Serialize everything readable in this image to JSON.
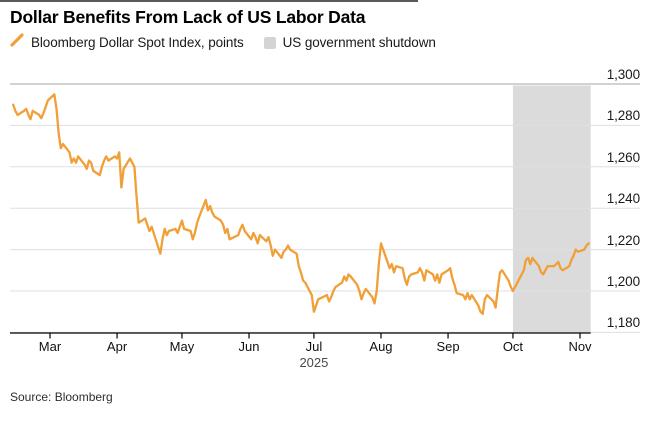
{
  "header": {
    "title": "Dollar Benefits From Lack of US Labor Data"
  },
  "legend": {
    "series_label": "Bloomberg Dollar Spot Index, points",
    "band_label": "US government shutdown"
  },
  "colors": {
    "series_orange": "#F19F37",
    "band_gray": "#DBDBDB",
    "legend_square_gray": "#D4D4D4",
    "gridline": "#DFDFDF",
    "top_gridline": "#A6A6A6",
    "axis": "#000000"
  },
  "footer": {
    "source": "Source: Bloomberg"
  },
  "chart_data": {
    "type": "line",
    "title": "Dollar Benefits From Lack of US Labor Data",
    "ylabel": "Bloomberg Dollar Spot Index, points",
    "ylim": [
      1176,
      1302
    ],
    "grid": "horizontal",
    "legend_position": "top-left",
    "y_ticks": [
      1300,
      1280,
      1260,
      1240,
      1220,
      1200,
      1180
    ],
    "y_tick_labels": [
      "1,300",
      "1,280",
      "1,260",
      "1,240",
      "1,220",
      "1,200",
      "1,180"
    ],
    "x_ticks": [
      {
        "label": "Mar",
        "date": "2025-03-01"
      },
      {
        "label": "Apr",
        "date": "2025-04-01"
      },
      {
        "label": "May",
        "date": "2025-05-01"
      },
      {
        "label": "Jun",
        "date": "2025-06-01"
      },
      {
        "label": "Jul",
        "date": "2025-07-01"
      },
      {
        "label": "Aug",
        "date": "2025-08-01"
      },
      {
        "label": "Sep",
        "date": "2025-09-01"
      },
      {
        "label": "Oct",
        "date": "2025-10-01"
      },
      {
        "label": "Nov",
        "date": "2025-11-01"
      }
    ],
    "x_year_label": "2025",
    "shutdown_band": {
      "label": "US government shutdown",
      "start": "2025-10-01",
      "end": "2025-11-05"
    },
    "series": [
      {
        "name": "Bloomberg Dollar Spot Index, points",
        "points": [
          [
            "2025-02-12",
            1290
          ],
          [
            "2025-02-13",
            1287
          ],
          [
            "2025-02-14",
            1285
          ],
          [
            "2025-02-17",
            1287
          ],
          [
            "2025-02-18",
            1288
          ],
          [
            "2025-02-19",
            1285
          ],
          [
            "2025-02-20",
            1283
          ],
          [
            "2025-02-21",
            1287
          ],
          [
            "2025-02-24",
            1285
          ],
          [
            "2025-02-25",
            1283.5
          ],
          [
            "2025-02-26",
            1286
          ],
          [
            "2025-02-27",
            1289
          ],
          [
            "2025-02-28",
            1292
          ],
          [
            "2025-03-03",
            1295
          ],
          [
            "2025-03-04",
            1288
          ],
          [
            "2025-03-05",
            1276
          ],
          [
            "2025-03-06",
            1269
          ],
          [
            "2025-03-07",
            1271
          ],
          [
            "2025-03-10",
            1267
          ],
          [
            "2025-03-11",
            1262
          ],
          [
            "2025-03-12",
            1264
          ],
          [
            "2025-03-13",
            1262
          ],
          [
            "2025-03-14",
            1265
          ],
          [
            "2025-03-17",
            1261
          ],
          [
            "2025-03-18",
            1259
          ],
          [
            "2025-03-19",
            1263
          ],
          [
            "2025-03-20",
            1262
          ],
          [
            "2025-03-21",
            1258
          ],
          [
            "2025-03-24",
            1256
          ],
          [
            "2025-03-25",
            1260
          ],
          [
            "2025-03-26",
            1263
          ],
          [
            "2025-03-27",
            1265
          ],
          [
            "2025-03-28",
            1263
          ],
          [
            "2025-03-31",
            1265
          ],
          [
            "2025-04-01",
            1264
          ],
          [
            "2025-04-02",
            1267
          ],
          [
            "2025-04-03",
            1250
          ],
          [
            "2025-04-04",
            1259
          ],
          [
            "2025-04-07",
            1264
          ],
          [
            "2025-04-08",
            1262
          ],
          [
            "2025-04-09",
            1260
          ],
          [
            "2025-04-10",
            1246
          ],
          [
            "2025-04-11",
            1233
          ],
          [
            "2025-04-14",
            1235
          ],
          [
            "2025-04-15",
            1232
          ],
          [
            "2025-04-16",
            1229
          ],
          [
            "2025-04-17",
            1231
          ],
          [
            "2025-04-21",
            1218
          ],
          [
            "2025-04-22",
            1225
          ],
          [
            "2025-04-23",
            1230
          ],
          [
            "2025-04-24",
            1227
          ],
          [
            "2025-04-25",
            1229
          ],
          [
            "2025-04-28",
            1230
          ],
          [
            "2025-04-29",
            1228
          ],
          [
            "2025-04-30",
            1231
          ],
          [
            "2025-05-01",
            1234
          ],
          [
            "2025-05-02",
            1230
          ],
          [
            "2025-05-05",
            1229
          ],
          [
            "2025-05-06",
            1225
          ],
          [
            "2025-05-07",
            1228
          ],
          [
            "2025-05-08",
            1233
          ],
          [
            "2025-05-09",
            1236
          ],
          [
            "2025-05-12",
            1244
          ],
          [
            "2025-05-13",
            1239
          ],
          [
            "2025-05-14",
            1241
          ],
          [
            "2025-05-15",
            1238
          ],
          [
            "2025-05-16",
            1236
          ],
          [
            "2025-05-19",
            1234
          ],
          [
            "2025-05-20",
            1232
          ],
          [
            "2025-05-21",
            1228
          ],
          [
            "2025-05-22",
            1230
          ],
          [
            "2025-05-23",
            1225
          ],
          [
            "2025-05-27",
            1227
          ],
          [
            "2025-05-28",
            1230
          ],
          [
            "2025-05-29",
            1232
          ],
          [
            "2025-05-30",
            1229
          ],
          [
            "2025-06-02",
            1225
          ],
          [
            "2025-06-03",
            1228
          ],
          [
            "2025-06-04",
            1226
          ],
          [
            "2025-06-05",
            1223
          ],
          [
            "2025-06-06",
            1227
          ],
          [
            "2025-06-09",
            1224
          ],
          [
            "2025-06-10",
            1226
          ],
          [
            "2025-06-11",
            1222
          ],
          [
            "2025-06-12",
            1217
          ],
          [
            "2025-06-13",
            1220
          ],
          [
            "2025-06-16",
            1216
          ],
          [
            "2025-06-17",
            1219
          ],
          [
            "2025-06-18",
            1220
          ],
          [
            "2025-06-19",
            1222
          ],
          [
            "2025-06-20",
            1220
          ],
          [
            "2025-06-23",
            1218
          ],
          [
            "2025-06-24",
            1212
          ],
          [
            "2025-06-25",
            1209
          ],
          [
            "2025-06-26",
            1205
          ],
          [
            "2025-06-27",
            1204
          ],
          [
            "2025-06-30",
            1198
          ],
          [
            "2025-07-01",
            1190
          ],
          [
            "2025-07-02",
            1193
          ],
          [
            "2025-07-03",
            1196
          ],
          [
            "2025-07-07",
            1198
          ],
          [
            "2025-07-08",
            1195
          ],
          [
            "2025-07-09",
            1197
          ],
          [
            "2025-07-10",
            1200
          ],
          [
            "2025-07-11",
            1202
          ],
          [
            "2025-07-14",
            1204
          ],
          [
            "2025-07-15",
            1207
          ],
          [
            "2025-07-16",
            1205
          ],
          [
            "2025-07-17",
            1208
          ],
          [
            "2025-07-18",
            1207
          ],
          [
            "2025-07-21",
            1203
          ],
          [
            "2025-07-22",
            1200
          ],
          [
            "2025-07-23",
            1196
          ],
          [
            "2025-07-24",
            1199
          ],
          [
            "2025-07-25",
            1201
          ],
          [
            "2025-07-28",
            1197
          ],
          [
            "2025-07-29",
            1194
          ],
          [
            "2025-07-30",
            1200
          ],
          [
            "2025-07-31",
            1213
          ],
          [
            "2025-08-01",
            1223
          ],
          [
            "2025-08-04",
            1214
          ],
          [
            "2025-08-05",
            1211
          ],
          [
            "2025-08-06",
            1213
          ],
          [
            "2025-08-07",
            1209
          ],
          [
            "2025-08-08",
            1212
          ],
          [
            "2025-08-11",
            1211
          ],
          [
            "2025-08-12",
            1206
          ],
          [
            "2025-08-13",
            1203
          ],
          [
            "2025-08-14",
            1207
          ],
          [
            "2025-08-15",
            1208
          ],
          [
            "2025-08-18",
            1209
          ],
          [
            "2025-08-19",
            1211
          ],
          [
            "2025-08-20",
            1209
          ],
          [
            "2025-08-21",
            1205
          ],
          [
            "2025-08-22",
            1210
          ],
          [
            "2025-08-25",
            1208
          ],
          [
            "2025-08-26",
            1205
          ],
          [
            "2025-08-27",
            1208
          ],
          [
            "2025-08-28",
            1204
          ],
          [
            "2025-08-29",
            1208
          ],
          [
            "2025-09-01",
            1210
          ],
          [
            "2025-09-02",
            1211
          ],
          [
            "2025-09-03",
            1206
          ],
          [
            "2025-09-04",
            1203
          ],
          [
            "2025-09-05",
            1199
          ],
          [
            "2025-09-08",
            1198
          ],
          [
            "2025-09-09",
            1196
          ],
          [
            "2025-09-10",
            1199
          ],
          [
            "2025-09-11",
            1196
          ],
          [
            "2025-09-12",
            1198
          ],
          [
            "2025-09-15",
            1193
          ],
          [
            "2025-09-16",
            1190
          ],
          [
            "2025-09-17",
            1189
          ],
          [
            "2025-09-18",
            1196
          ],
          [
            "2025-09-19",
            1198
          ],
          [
            "2025-09-22",
            1195
          ],
          [
            "2025-09-23",
            1192
          ],
          [
            "2025-09-24",
            1201
          ],
          [
            "2025-09-25",
            1209
          ],
          [
            "2025-09-26",
            1210
          ],
          [
            "2025-09-29",
            1205
          ],
          [
            "2025-09-30",
            1202
          ],
          [
            "2025-10-01",
            1200
          ],
          [
            "2025-10-02",
            1202
          ],
          [
            "2025-10-03",
            1204
          ],
          [
            "2025-10-06",
            1210
          ],
          [
            "2025-10-07",
            1215
          ],
          [
            "2025-10-08",
            1216
          ],
          [
            "2025-10-09",
            1213
          ],
          [
            "2025-10-10",
            1216
          ],
          [
            "2025-10-13",
            1212
          ],
          [
            "2025-10-14",
            1209
          ],
          [
            "2025-10-15",
            1208
          ],
          [
            "2025-10-16",
            1210
          ],
          [
            "2025-10-17",
            1212
          ],
          [
            "2025-10-20",
            1212
          ],
          [
            "2025-10-21",
            1213
          ],
          [
            "2025-10-22",
            1214
          ],
          [
            "2025-10-23",
            1211
          ],
          [
            "2025-10-24",
            1210
          ],
          [
            "2025-10-27",
            1212
          ],
          [
            "2025-10-28",
            1215
          ],
          [
            "2025-10-29",
            1217
          ],
          [
            "2025-10-30",
            1220
          ],
          [
            "2025-10-31",
            1219
          ],
          [
            "2025-11-03",
            1220
          ],
          [
            "2025-11-04",
            1222
          ],
          [
            "2025-11-05",
            1223
          ]
        ]
      }
    ]
  }
}
